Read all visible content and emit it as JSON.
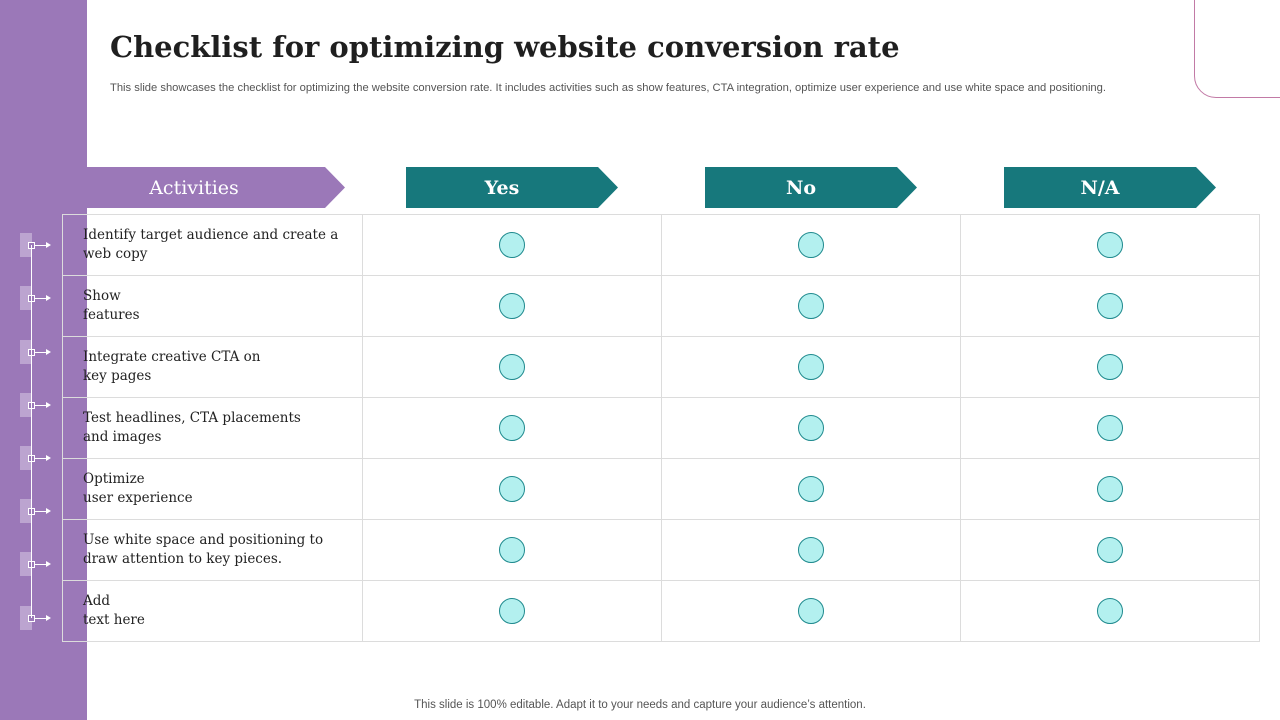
{
  "slide": {
    "title": "Checklist for optimizing website conversion rate",
    "subtitle": "This slide showcases the checklist for optimizing the website conversion rate. It includes activities such as show features, CTA integration, optimize user experience and use white space and positioning.",
    "footer": "This slide is 100% editable. Adapt it to your needs and capture your audience’s attention."
  },
  "headers": {
    "activities": "Activities",
    "yes": "Yes",
    "no": "No",
    "na": "N/A"
  },
  "rows": [
    {
      "activity": "Identify target audience and create a\nweb copy"
    },
    {
      "activity": "Show\nfeatures"
    },
    {
      "activity": "Integrate creative CTA on\nkey pages"
    },
    {
      "activity": "Test headlines, CTA placements\nand images"
    },
    {
      "activity": "Optimize\nuser experience"
    },
    {
      "activity": "Use white space and positioning to\ndraw attention to key pieces."
    },
    {
      "activity": "Add\ntext here"
    }
  ],
  "colors": {
    "sidebar": "#9b78b8",
    "header_teal": "#17787c",
    "circle_fill": "#b3f0ef",
    "circle_border": "#1f8a8e"
  }
}
